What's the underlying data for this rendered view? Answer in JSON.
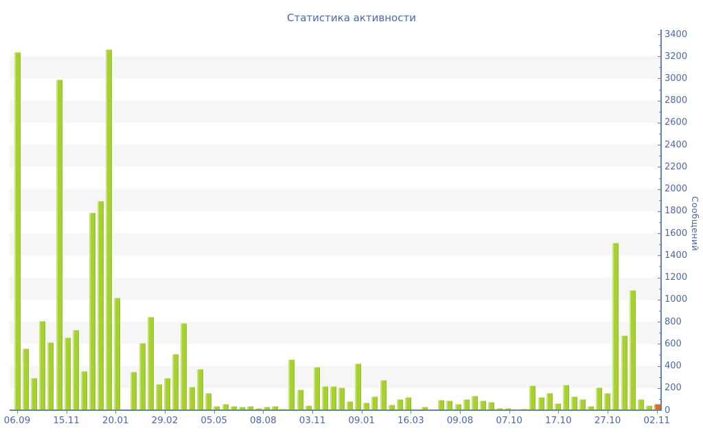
{
  "title": "Статистика активности",
  "y_axis": {
    "title": "Сообщений",
    "min": 0,
    "max": 3400,
    "major_step": 200,
    "minor_step": 100,
    "tick_labels": [
      "0",
      "200",
      "400",
      "600",
      "800",
      "1000",
      "1200",
      "1400",
      "1600",
      "1800",
      "2000",
      "2200",
      "2400",
      "2600",
      "2800",
      "3000",
      "3200",
      "3400"
    ]
  },
  "x_axis": {
    "tick_labels": [
      "06.09",
      "15.11",
      "20.01",
      "29.02",
      "05.05",
      "08.08",
      "03.11",
      "09.01",
      "16.03",
      "09.08",
      "07.10",
      "17.10",
      "27.10",
      "02.11"
    ]
  },
  "chart_data": {
    "type": "bar",
    "series_name": "Сообщений",
    "ylim": [
      0,
      3400
    ],
    "grid": "alternating-bands",
    "legend": "none",
    "values": [
      3240,
      560,
      290,
      805,
      615,
      2990,
      660,
      725,
      355,
      1785,
      1890,
      3265,
      1015,
      5,
      350,
      610,
      845,
      235,
      290,
      510,
      790,
      210,
      375,
      155,
      35,
      55,
      35,
      30,
      35,
      20,
      30,
      40,
      15,
      460,
      185,
      45,
      390,
      220,
      215,
      205,
      80,
      425,
      70,
      125,
      270,
      50,
      100,
      115,
      5,
      30,
      5,
      95,
      85,
      55,
      100,
      130,
      90,
      75,
      20,
      20,
      5,
      15,
      225,
      120,
      155,
      60,
      230,
      125,
      100,
      35,
      205,
      155,
      1515,
      675,
      1085,
      100,
      45,
      55
    ],
    "last_bar_highlighted": true
  },
  "colors": {
    "bar": "#a6d133",
    "bar_highlight_edge": "#cde47c",
    "last_bar": "#df6b28",
    "axis": "#6680b2",
    "tick_label": "#4a67a8",
    "title": "#4468b0",
    "band": "#f6f6f7"
  }
}
